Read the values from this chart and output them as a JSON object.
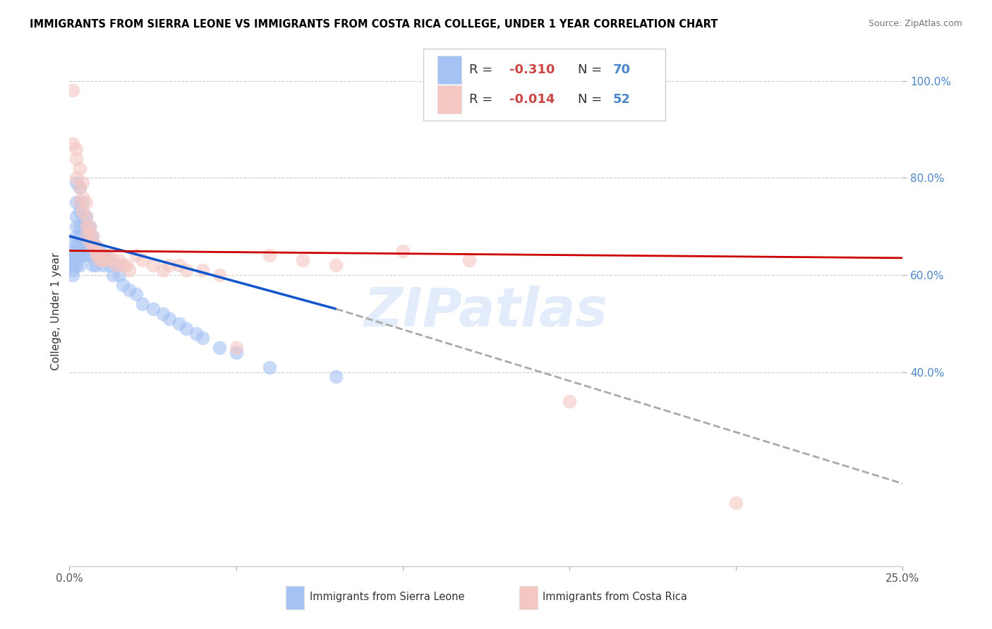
{
  "title": "IMMIGRANTS FROM SIERRA LEONE VS IMMIGRANTS FROM COSTA RICA COLLEGE, UNDER 1 YEAR CORRELATION CHART",
  "source": "Source: ZipAtlas.com",
  "ylabel": "College, Under 1 year",
  "x_min": 0.0,
  "x_max": 0.25,
  "y_min": 0.0,
  "y_max": 1.05,
  "right_yticks": [
    1.0,
    0.8,
    0.6,
    0.4
  ],
  "right_ytick_labels": [
    "100.0%",
    "80.0%",
    "60.0%",
    "40.0%"
  ],
  "bottom_xticks": [
    0.0,
    0.05,
    0.1,
    0.15,
    0.2,
    0.25
  ],
  "bottom_xtick_labels": [
    "0.0%",
    "",
    "",
    "",
    "",
    "25.0%"
  ],
  "legend_R1": "-0.310",
  "legend_N1": "70",
  "legend_R2": "-0.014",
  "legend_N2": "52",
  "color_blue": "#a4c2f4",
  "color_pink": "#f4c7c3",
  "color_blue_line": "#1155cc",
  "color_pink_line": "#cc0000",
  "color_dashed": "#aaaaaa",
  "watermark_color": "#c9daf8",
  "sierra_leone_x": [
    0.001,
    0.001,
    0.001,
    0.001,
    0.001,
    0.001,
    0.001,
    0.002,
    0.002,
    0.002,
    0.002,
    0.002,
    0.002,
    0.002,
    0.002,
    0.002,
    0.003,
    0.003,
    0.003,
    0.003,
    0.003,
    0.003,
    0.003,
    0.003,
    0.004,
    0.004,
    0.004,
    0.004,
    0.004,
    0.004,
    0.005,
    0.005,
    0.005,
    0.005,
    0.005,
    0.006,
    0.006,
    0.006,
    0.006,
    0.007,
    0.007,
    0.007,
    0.007,
    0.008,
    0.008,
    0.008,
    0.009,
    0.009,
    0.01,
    0.01,
    0.011,
    0.012,
    0.013,
    0.014,
    0.015,
    0.016,
    0.018,
    0.02,
    0.022,
    0.025,
    0.028,
    0.03,
    0.033,
    0.035,
    0.038,
    0.04,
    0.045,
    0.05,
    0.06,
    0.08
  ],
  "sierra_leone_y": [
    0.67,
    0.65,
    0.64,
    0.63,
    0.62,
    0.61,
    0.6,
    0.79,
    0.75,
    0.72,
    0.7,
    0.68,
    0.66,
    0.64,
    0.63,
    0.62,
    0.78,
    0.75,
    0.73,
    0.7,
    0.68,
    0.66,
    0.64,
    0.62,
    0.75,
    0.72,
    0.7,
    0.68,
    0.66,
    0.64,
    0.72,
    0.7,
    0.68,
    0.66,
    0.64,
    0.7,
    0.68,
    0.66,
    0.64,
    0.68,
    0.66,
    0.64,
    0.62,
    0.66,
    0.64,
    0.62,
    0.65,
    0.63,
    0.64,
    0.62,
    0.64,
    0.62,
    0.6,
    0.62,
    0.6,
    0.58,
    0.57,
    0.56,
    0.54,
    0.53,
    0.52,
    0.51,
    0.5,
    0.49,
    0.48,
    0.47,
    0.45,
    0.44,
    0.41,
    0.39
  ],
  "costa_rica_x": [
    0.001,
    0.001,
    0.002,
    0.002,
    0.002,
    0.003,
    0.003,
    0.003,
    0.004,
    0.004,
    0.004,
    0.005,
    0.005,
    0.005,
    0.005,
    0.006,
    0.006,
    0.006,
    0.007,
    0.007,
    0.008,
    0.008,
    0.008,
    0.009,
    0.009,
    0.01,
    0.01,
    0.011,
    0.012,
    0.013,
    0.014,
    0.015,
    0.016,
    0.017,
    0.018,
    0.02,
    0.022,
    0.025,
    0.028,
    0.03,
    0.033,
    0.035,
    0.04,
    0.045,
    0.05,
    0.06,
    0.07,
    0.08,
    0.1,
    0.12,
    0.15,
    0.2
  ],
  "costa_rica_y": [
    0.98,
    0.87,
    0.86,
    0.84,
    0.8,
    0.82,
    0.78,
    0.75,
    0.79,
    0.76,
    0.73,
    0.75,
    0.72,
    0.7,
    0.68,
    0.7,
    0.69,
    0.67,
    0.68,
    0.66,
    0.66,
    0.65,
    0.64,
    0.64,
    0.63,
    0.64,
    0.63,
    0.63,
    0.64,
    0.63,
    0.62,
    0.63,
    0.62,
    0.62,
    0.61,
    0.64,
    0.63,
    0.62,
    0.61,
    0.62,
    0.62,
    0.61,
    0.61,
    0.6,
    0.45,
    0.64,
    0.63,
    0.62,
    0.65,
    0.63,
    0.34,
    0.13
  ],
  "blue_line_x0": 0.0,
  "blue_line_x1": 0.08,
  "blue_line_y0": 0.68,
  "blue_line_y1": 0.53,
  "dash_line_x0": 0.08,
  "dash_line_x1": 0.25,
  "dash_line_y0": 0.53,
  "dash_line_y1": 0.17,
  "pink_line_x0": 0.0,
  "pink_line_x1": 0.25,
  "pink_line_y0": 0.65,
  "pink_line_y1": 0.635
}
